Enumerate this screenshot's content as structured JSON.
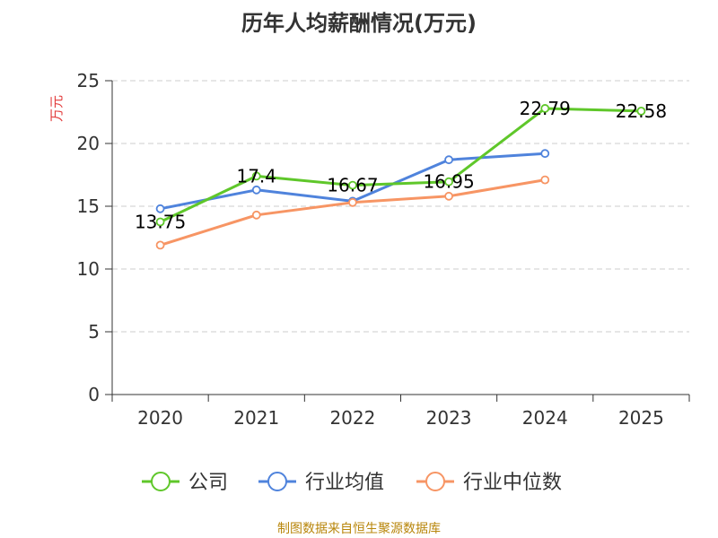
{
  "title": "历年人均薪酬情况(万元)",
  "source": "制图数据来自恒生聚源数据库",
  "colors": {
    "company": "#5fc72a",
    "industry_avg": "#4f83dc",
    "industry_median": "#f79564",
    "grid": "#cccccc",
    "axis": "#333333",
    "y_unit": "#e23b3b",
    "source": "#b8860b"
  },
  "chart_data": {
    "type": "line",
    "title": "历年人均薪酬情况(万元)",
    "xlabel": "",
    "ylabel": "万元",
    "categories": [
      "2020",
      "2021",
      "2022",
      "2023",
      "2024",
      "2025"
    ],
    "ylim": [
      0,
      25
    ],
    "yticks": [
      0,
      5,
      10,
      15,
      20,
      25
    ],
    "grid": true,
    "legend_position": "bottom",
    "series": [
      {
        "name": "公司",
        "color": "#5fc72a",
        "values": [
          13.75,
          17.4,
          16.67,
          16.95,
          22.79,
          22.58
        ],
        "labels": [
          "13.75",
          "17.4",
          "16.67",
          "16.95",
          "22.79",
          "22.58"
        ]
      },
      {
        "name": "行业均值",
        "color": "#4f83dc",
        "values": [
          14.8,
          16.3,
          15.4,
          18.7,
          19.2,
          null
        ]
      },
      {
        "name": "行业中位数",
        "color": "#f79564",
        "values": [
          11.9,
          14.3,
          15.3,
          15.8,
          17.1,
          null
        ]
      }
    ]
  }
}
